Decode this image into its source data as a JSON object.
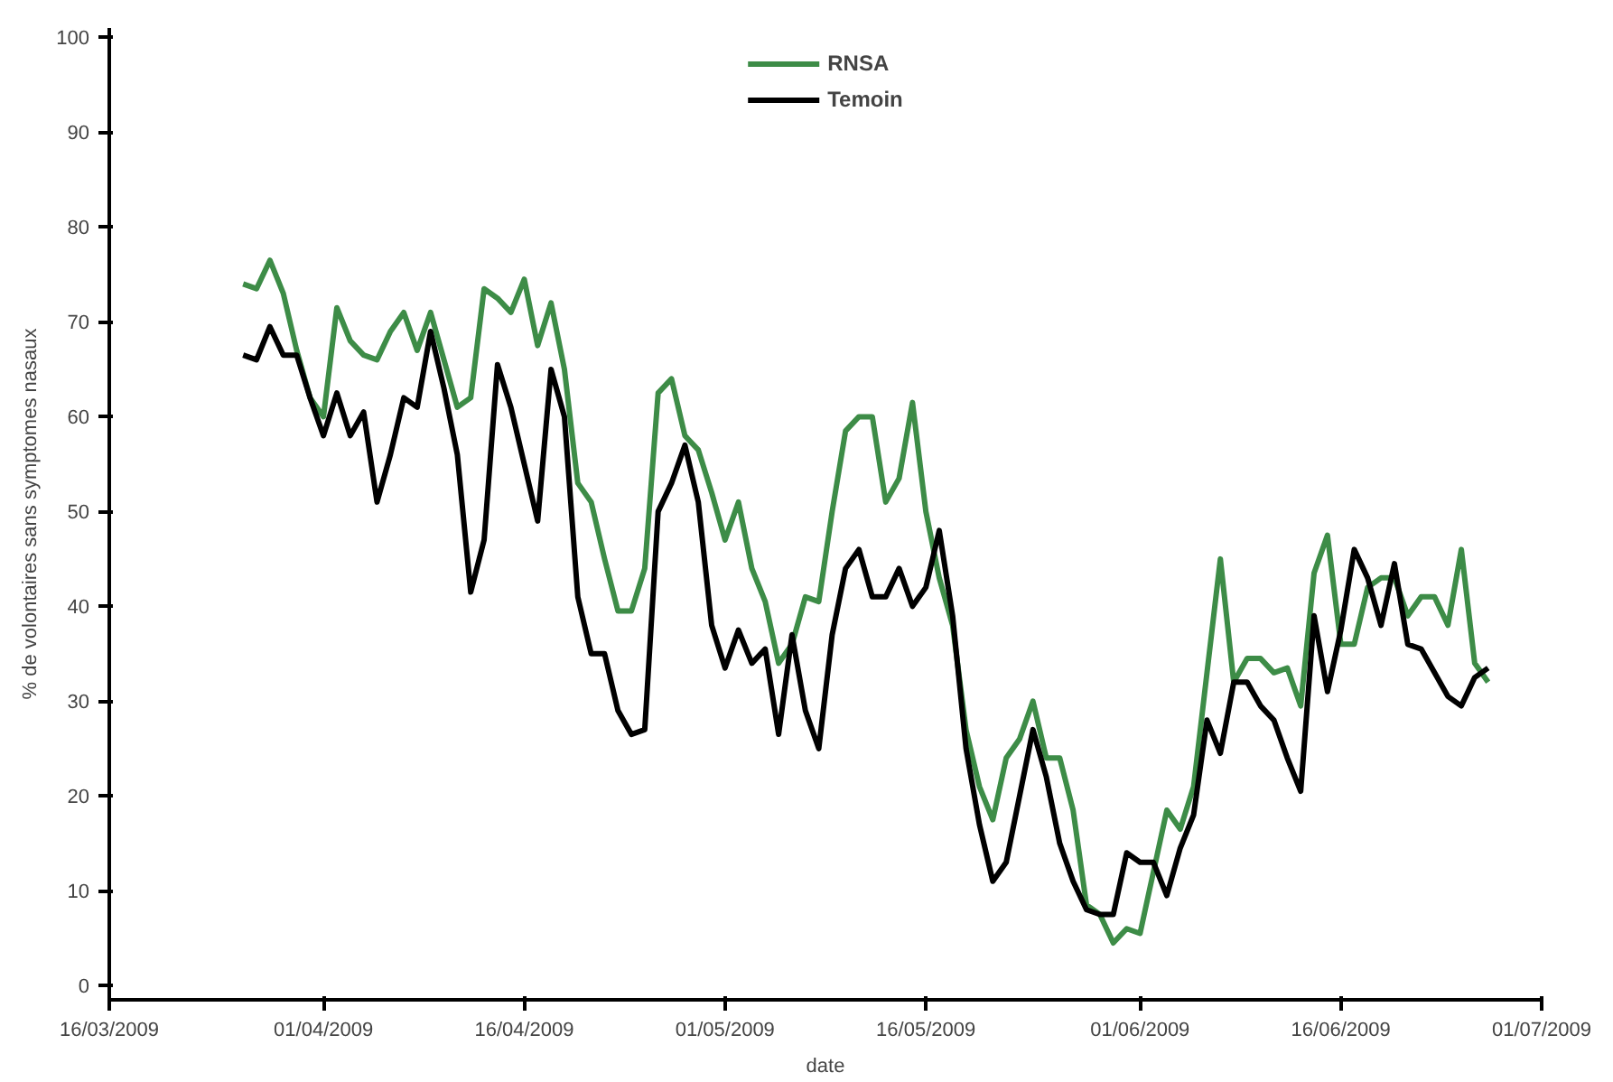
{
  "chart_data": {
    "type": "line",
    "xlabel": "date",
    "ylabel": "% de volontaires sans symptomes nasaux",
    "x": [
      "2009-03-26",
      "2009-03-27",
      "2009-03-28",
      "2009-03-29",
      "2009-03-30",
      "2009-03-31",
      "2009-04-01",
      "2009-04-02",
      "2009-04-03",
      "2009-04-04",
      "2009-04-05",
      "2009-04-06",
      "2009-04-07",
      "2009-04-08",
      "2009-04-09",
      "2009-04-10",
      "2009-04-11",
      "2009-04-12",
      "2009-04-13",
      "2009-04-14",
      "2009-04-15",
      "2009-04-16",
      "2009-04-17",
      "2009-04-18",
      "2009-04-19",
      "2009-04-20",
      "2009-04-21",
      "2009-04-22",
      "2009-04-23",
      "2009-04-24",
      "2009-04-25",
      "2009-04-26",
      "2009-04-27",
      "2009-04-28",
      "2009-04-29",
      "2009-04-30",
      "2009-05-01",
      "2009-05-02",
      "2009-05-03",
      "2009-05-04",
      "2009-05-05",
      "2009-05-06",
      "2009-05-07",
      "2009-05-08",
      "2009-05-09",
      "2009-05-10",
      "2009-05-11",
      "2009-05-12",
      "2009-05-13",
      "2009-05-14",
      "2009-05-15",
      "2009-05-16",
      "2009-05-17",
      "2009-05-18",
      "2009-05-19",
      "2009-05-20",
      "2009-05-21",
      "2009-05-22",
      "2009-05-23",
      "2009-05-24",
      "2009-05-25",
      "2009-05-26",
      "2009-05-27",
      "2009-05-28",
      "2009-05-29",
      "2009-05-30",
      "2009-05-31",
      "2009-06-01",
      "2009-06-02",
      "2009-06-03",
      "2009-06-04",
      "2009-06-05",
      "2009-06-06",
      "2009-06-07",
      "2009-06-08",
      "2009-06-09",
      "2009-06-10",
      "2009-06-11",
      "2009-06-12",
      "2009-06-13",
      "2009-06-14",
      "2009-06-15",
      "2009-06-16",
      "2009-06-17",
      "2009-06-18",
      "2009-06-19",
      "2009-06-20",
      "2009-06-21",
      "2009-06-22",
      "2009-06-23",
      "2009-06-24",
      "2009-06-25",
      "2009-06-26",
      "2009-06-27"
    ],
    "series": [
      {
        "name": "RNSA",
        "color": "#3d8c47",
        "values": [
          74,
          73.5,
          76.5,
          73,
          67,
          62,
          60,
          71.5,
          68,
          66.5,
          66,
          69,
          71,
          67,
          71,
          66,
          61,
          62,
          73.5,
          72.5,
          71,
          74.5,
          67.5,
          72,
          65,
          53,
          51,
          45,
          39.5,
          39.5,
          44,
          62.5,
          64,
          58,
          56.5,
          52,
          47,
          51,
          44,
          40.5,
          34,
          36,
          41,
          40.5,
          50,
          58.5,
          60,
          60,
          51,
          53.5,
          61.5,
          50,
          43,
          38,
          27,
          21,
          17.5,
          24,
          26,
          30,
          24,
          24,
          18.5,
          8.5,
          7.5,
          4.5,
          6,
          5.5,
          12,
          18.5,
          16.5,
          21,
          33,
          45,
          32,
          34.5,
          34.5,
          33,
          33.5,
          29.5,
          43.5,
          47.5,
          36,
          36,
          42,
          43,
          43,
          39,
          41,
          41,
          38,
          46,
          34,
          32
        ]
      },
      {
        "name": "Temoin",
        "color": "#000000",
        "values": [
          66.5,
          66,
          69.5,
          66.5,
          66.5,
          62,
          58,
          62.5,
          58,
          60.5,
          51,
          56,
          62,
          61,
          69,
          63,
          56,
          41.5,
          47,
          65.5,
          61,
          55,
          49,
          65,
          60,
          41,
          35,
          35,
          29,
          26.5,
          27,
          50,
          53,
          57,
          51,
          38,
          33.5,
          37.5,
          34,
          35.5,
          26.5,
          37,
          29,
          25,
          37,
          44,
          46,
          41,
          41,
          44,
          40,
          42,
          48,
          39,
          25,
          17,
          11,
          13,
          20,
          27,
          22,
          15,
          11,
          8,
          7.5,
          7.5,
          14,
          13,
          13,
          9.5,
          14.5,
          18,
          28,
          24.5,
          32,
          32,
          29.5,
          28,
          24,
          20.5,
          39,
          31,
          37.5,
          46,
          43,
          38,
          44.5,
          36,
          35.5,
          33,
          30.5,
          29.5,
          32.5,
          33.5
        ]
      }
    ],
    "xlim": [
      "2009-03-16",
      "2009-07-01"
    ],
    "xticks": [
      {
        "value": "2009-03-16",
        "label": "16/03/2009"
      },
      {
        "value": "2009-04-01",
        "label": "01/04/2009"
      },
      {
        "value": "2009-04-16",
        "label": "16/04/2009"
      },
      {
        "value": "2009-05-01",
        "label": "01/05/2009"
      },
      {
        "value": "2009-05-16",
        "label": "16/05/2009"
      },
      {
        "value": "2009-06-01",
        "label": "01/06/2009"
      },
      {
        "value": "2009-06-16",
        "label": "16/06/2009"
      },
      {
        "value": "2009-07-01",
        "label": "01/07/2009"
      }
    ],
    "ylim": [
      -1.5,
      101
    ],
    "yticks": [
      0,
      10,
      20,
      30,
      40,
      50,
      60,
      70,
      80,
      90,
      100
    ],
    "grid": false,
    "legend": "top"
  }
}
